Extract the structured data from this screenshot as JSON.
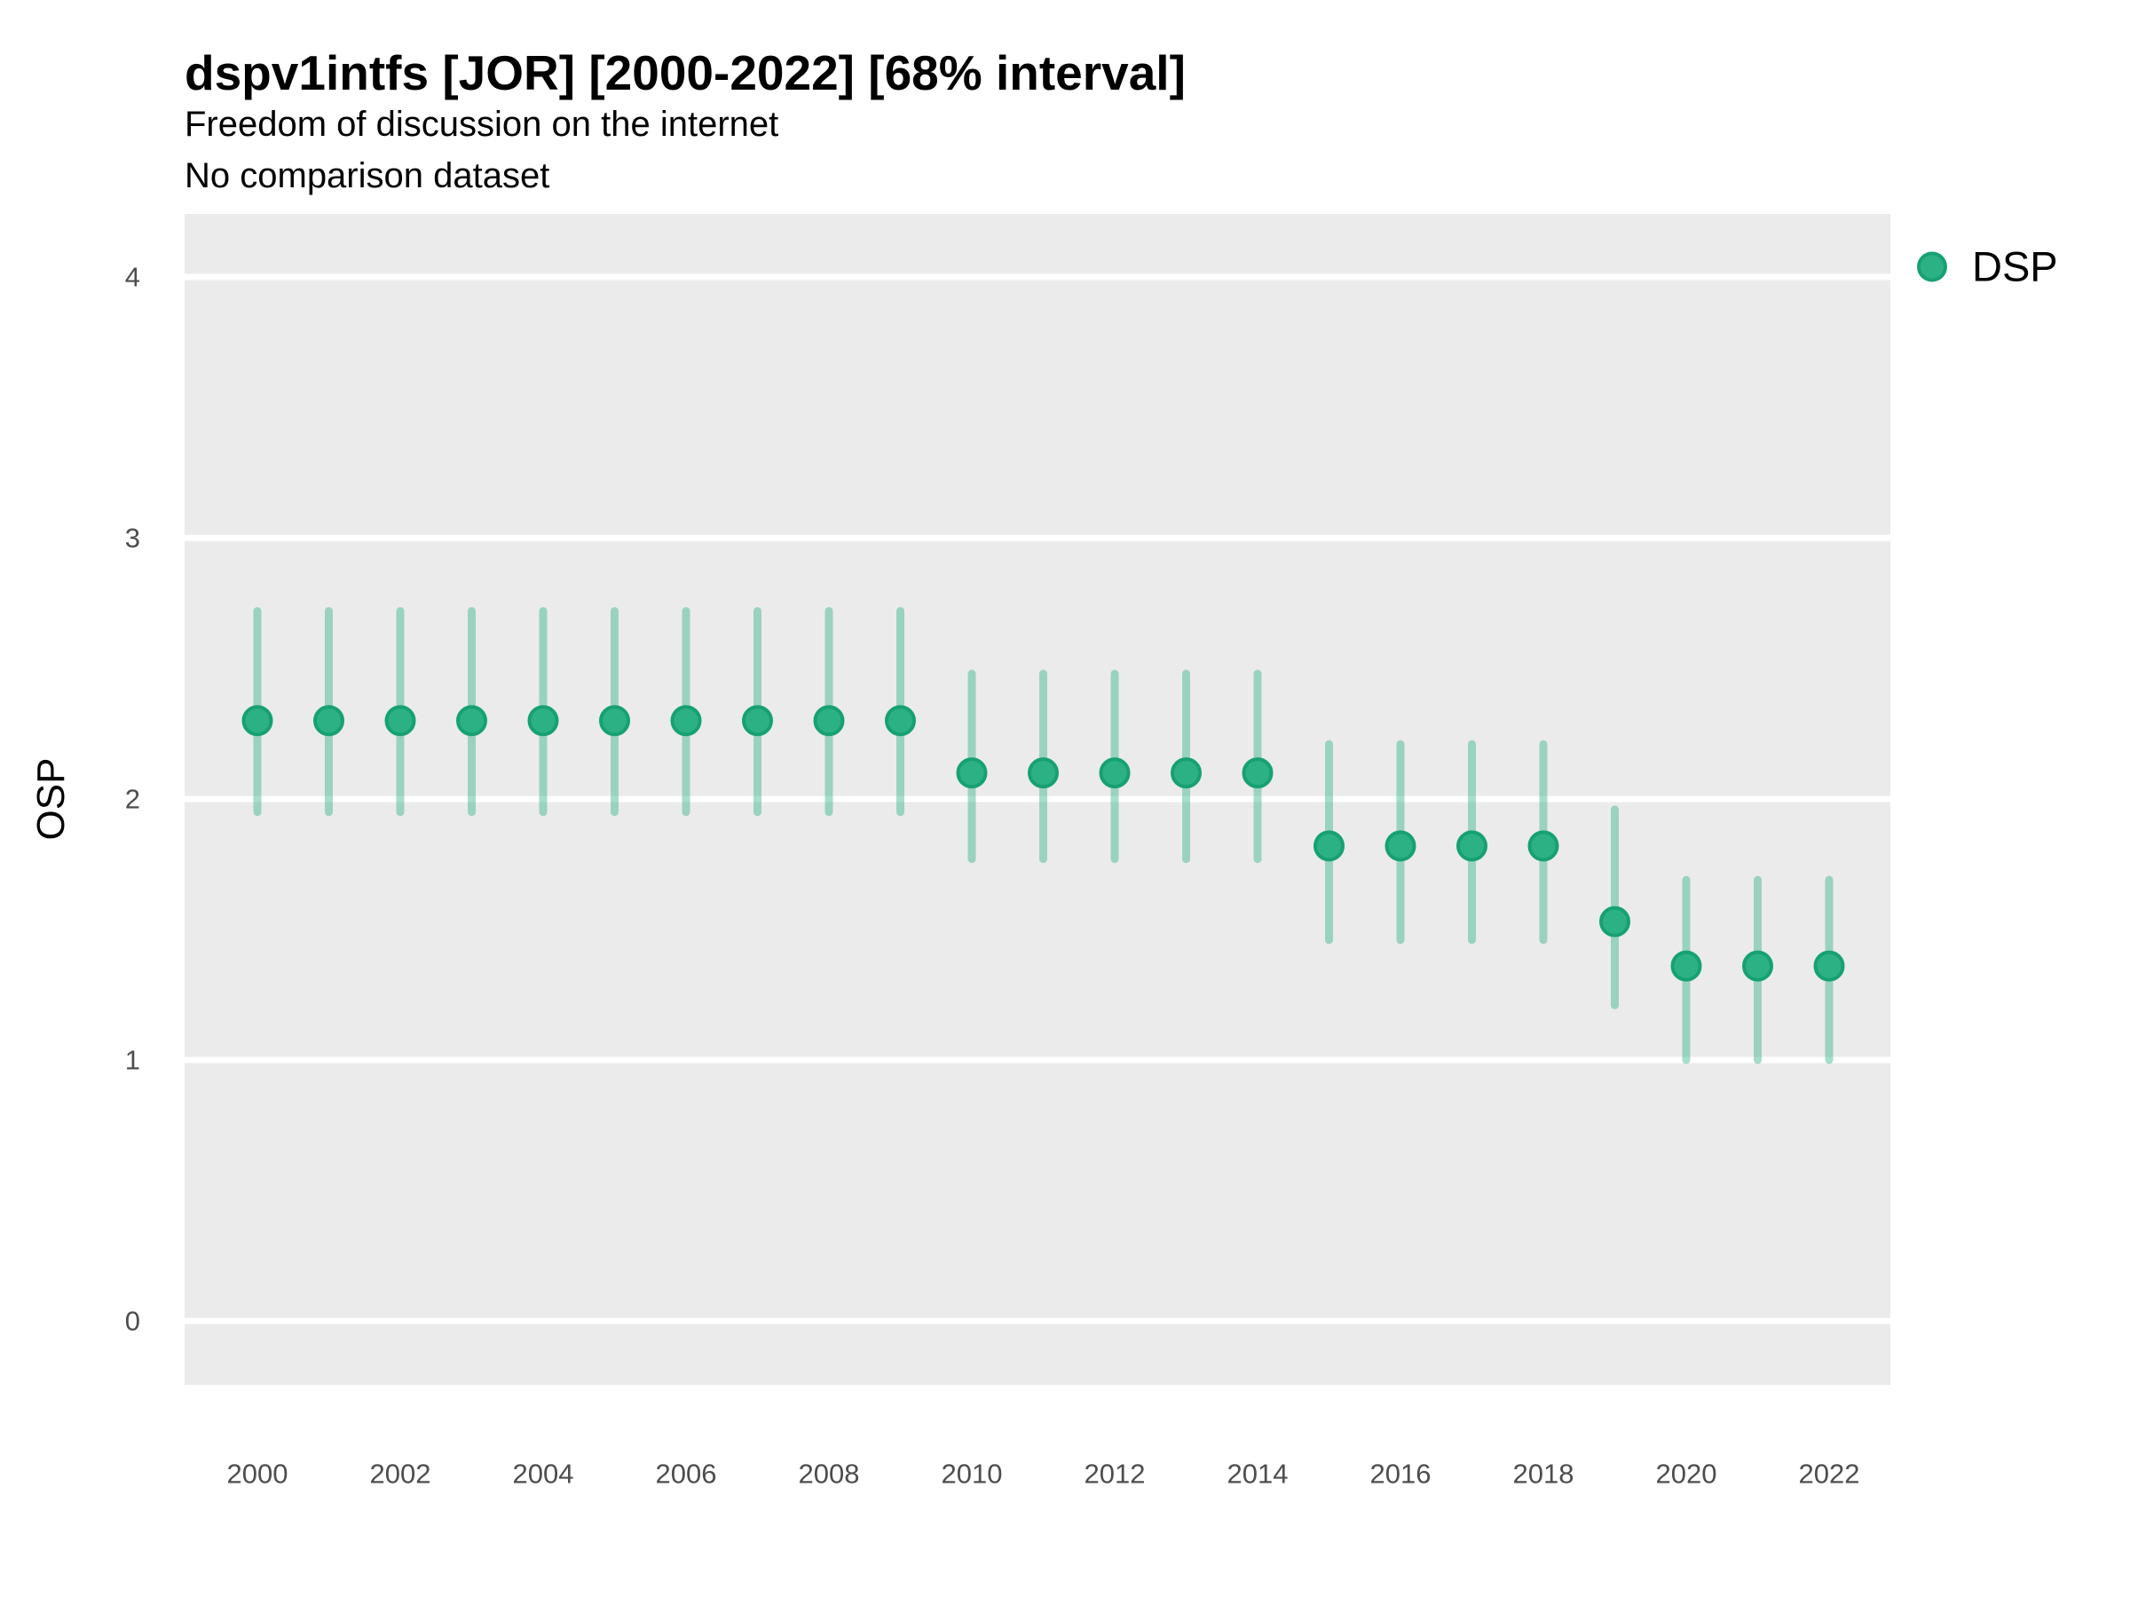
{
  "header": {
    "title": "dspv1intfs [JOR] [2000-2022] [68% interval]",
    "subtitle1": "Freedom of discussion on the internet",
    "subtitle2": "No comparison dataset"
  },
  "y_axis": {
    "title": "OSP",
    "ticks": [
      0,
      1,
      2,
      3,
      4
    ]
  },
  "x_axis": {
    "ticks": [
      2000,
      2002,
      2004,
      2006,
      2008,
      2010,
      2012,
      2014,
      2016,
      2018,
      2020,
      2022
    ]
  },
  "legend": {
    "label": "DSP"
  },
  "colors": {
    "point_fill": "#2CB185",
    "point_ring": "#17A173",
    "interval": "rgba(44,176,134,0.42)",
    "panel_bg": "#EBEBEB",
    "gridline": "#FFFFFF",
    "tick_text": "#4D4D4D"
  },
  "chart_data": {
    "type": "scatter",
    "title": "dspv1intfs [JOR] [2000-2022] [68% interval]",
    "subtitle": "Freedom of discussion on the internet",
    "note": "No comparison dataset",
    "xlabel": "",
    "ylabel": "OSP",
    "ylim": [
      0,
      4
    ],
    "grid": "major-horizontal-white-on-gray",
    "legend_position": "right",
    "interval_level": "68%",
    "x": [
      2000,
      2001,
      2002,
      2003,
      2004,
      2005,
      2006,
      2007,
      2008,
      2009,
      2010,
      2011,
      2012,
      2013,
      2014,
      2015,
      2016,
      2017,
      2018,
      2019,
      2020,
      2021,
      2022
    ],
    "series": [
      {
        "name": "DSP",
        "values": [
          2.3,
          2.3,
          2.3,
          2.3,
          2.3,
          2.3,
          2.3,
          2.3,
          2.3,
          2.3,
          2.1,
          2.1,
          2.1,
          2.1,
          2.1,
          1.82,
          1.82,
          1.82,
          1.82,
          1.53,
          1.36,
          1.36,
          1.36
        ],
        "interval_low": [
          1.95,
          1.95,
          1.95,
          1.95,
          1.95,
          1.95,
          1.95,
          1.95,
          1.95,
          1.95,
          1.77,
          1.77,
          1.77,
          1.77,
          1.77,
          1.46,
          1.46,
          1.46,
          1.46,
          1.21,
          1.0,
          1.0,
          1.0
        ],
        "interval_high": [
          2.72,
          2.72,
          2.72,
          2.72,
          2.72,
          2.72,
          2.72,
          2.72,
          2.72,
          2.72,
          2.48,
          2.48,
          2.48,
          2.48,
          2.48,
          2.21,
          2.21,
          2.21,
          2.21,
          1.96,
          1.69,
          1.69,
          1.69
        ]
      }
    ]
  }
}
